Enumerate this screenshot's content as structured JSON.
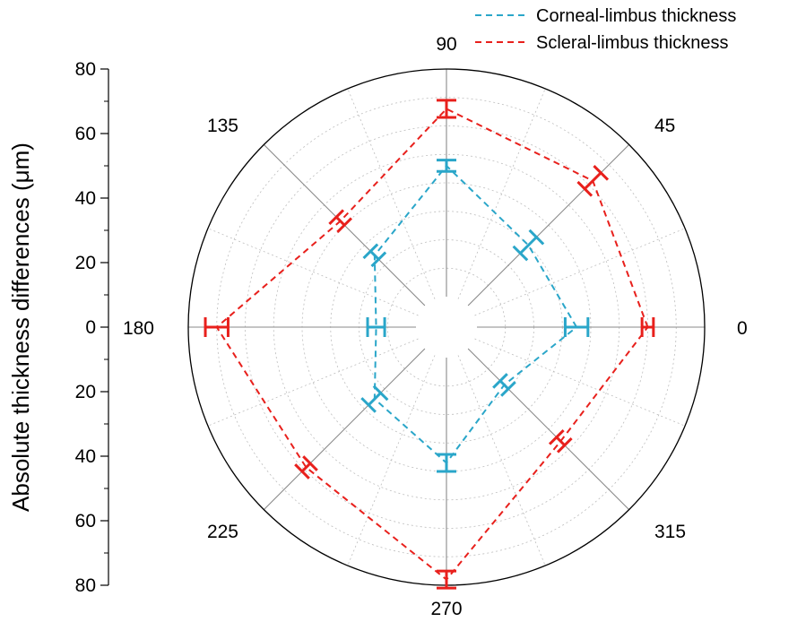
{
  "chart_data": {
    "type": "polar-line",
    "ylabel": "Absolute thickness differences (μm)",
    "radial_ticks": [
      "80",
      "60",
      "40",
      "20",
      "0",
      "20",
      "40",
      "60",
      "80"
    ],
    "radial_tick_values": [
      80,
      60,
      40,
      20,
      0,
      -20,
      -40,
      -60,
      -80
    ],
    "rlim": [
      0,
      80
    ],
    "angle_labels": [
      "0",
      "45",
      "90",
      "135",
      "180",
      "225",
      "270",
      "315"
    ],
    "angles": [
      0,
      45,
      90,
      135,
      180,
      225,
      270,
      315
    ],
    "series": [
      {
        "name": "Corneal-limbus thickness",
        "color": "#2aa6c9",
        "values": [
          35,
          30,
          46,
          25,
          14,
          25,
          37,
          18
        ],
        "errors": [
          4,
          4,
          2,
          2,
          3,
          3,
          3,
          2
        ]
      },
      {
        "name": "Scleral-limbus thickness",
        "color": "#e8201c",
        "values": [
          60,
          62,
          66,
          42,
          70,
          59,
          78,
          46
        ],
        "errors": [
          2,
          4,
          3,
          2,
          4,
          2,
          3,
          2
        ]
      }
    ],
    "grid": true,
    "legend_position": "top-right"
  }
}
